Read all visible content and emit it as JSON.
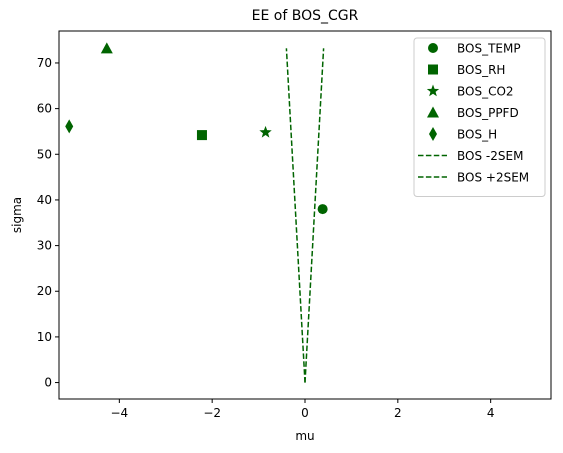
{
  "chart_data": {
    "type": "scatter",
    "title": "EE of BOS_CGR",
    "xlabel": "mu",
    "ylabel": "sigma",
    "xlim": [
      -5.3,
      5.3
    ],
    "ylim": [
      -3.6,
      77
    ],
    "xticks": [
      -4,
      -2,
      0,
      2,
      4
    ],
    "xtick_labels": [
      "−4",
      "−2",
      "0",
      "2",
      "4"
    ],
    "yticks": [
      0,
      10,
      20,
      30,
      40,
      50,
      60,
      70
    ],
    "ytick_labels": [
      "0",
      "10",
      "20",
      "30",
      "40",
      "50",
      "60",
      "70"
    ],
    "grid": false,
    "legend_position": "upper right",
    "color": "#006400",
    "series": [
      {
        "name": "BOS_TEMP",
        "marker": "circle",
        "x": [
          0.38
        ],
        "y": [
          38.0
        ]
      },
      {
        "name": "BOS_RH",
        "marker": "square",
        "x": [
          -2.22
        ],
        "y": [
          54.2
        ]
      },
      {
        "name": "BOS_CO2",
        "marker": "star",
        "x": [
          -0.85
        ],
        "y": [
          54.8
        ]
      },
      {
        "name": "BOS_PPFD",
        "marker": "triangle",
        "x": [
          -4.27
        ],
        "y": [
          73.2
        ]
      },
      {
        "name": "BOS_H",
        "marker": "diamond",
        "x": [
          -5.08
        ],
        "y": [
          56.1
        ]
      }
    ],
    "lines": [
      {
        "name": "BOS -2SEM",
        "style": "dashed",
        "x": [
          0,
          -0.4
        ],
        "y": [
          0,
          73.2
        ]
      },
      {
        "name": "BOS +2SEM",
        "style": "dashed",
        "x": [
          0,
          0.4
        ],
        "y": [
          0,
          73.2
        ]
      }
    ]
  }
}
